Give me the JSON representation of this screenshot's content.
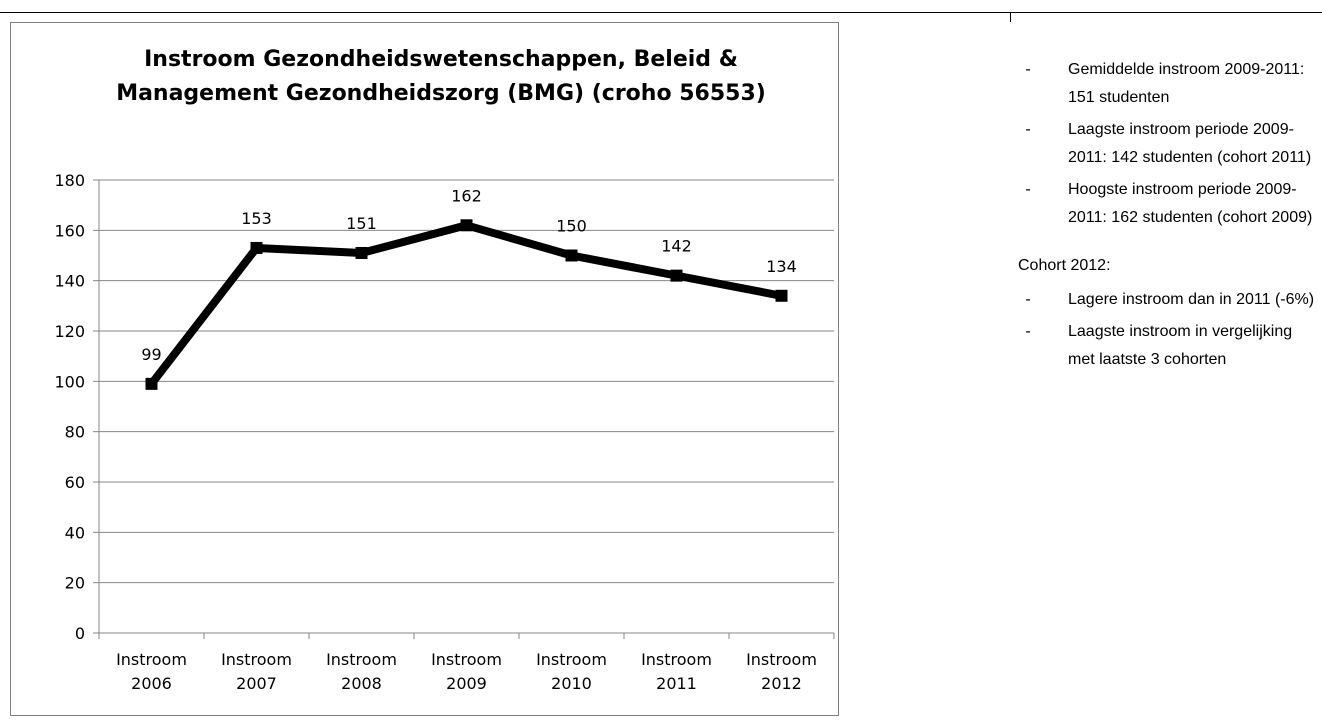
{
  "chart_data": {
    "type": "line",
    "title": "Instroom Gezondheidswetenschappen, Beleid & Management Gezondheidszorg (BMG) (croho 56553)",
    "categories": [
      [
        "Instroom",
        "2006"
      ],
      [
        "Instroom",
        "2007"
      ],
      [
        "Instroom",
        "2008"
      ],
      [
        "Instroom",
        "2009"
      ],
      [
        "Instroom",
        "2010"
      ],
      [
        "Instroom",
        "2011"
      ],
      [
        "Instroom",
        "2012"
      ]
    ],
    "series": [
      {
        "values": [
          99,
          153,
          151,
          162,
          150,
          142,
          134
        ],
        "color": "#000000"
      }
    ],
    "data_labels": [
      "99",
      "153",
      "151",
      "162",
      "150",
      "142",
      "134"
    ],
    "ylim": [
      0,
      180
    ],
    "yticks": [
      0,
      20,
      40,
      60,
      80,
      100,
      120,
      140,
      160,
      180
    ],
    "ytick_labels": [
      "0",
      "20",
      "40",
      "60",
      "80",
      "100",
      "120",
      "140",
      "160",
      "180"
    ],
    "grid": true,
    "legend": "none",
    "marker": "square",
    "xlabel": "",
    "ylabel": ""
  },
  "notes": {
    "bullets": [
      {
        "symbol": "-",
        "text": "Gemiddelde instroom 2009-2011: 151 studenten"
      },
      {
        "symbol": "-",
        "text": "Laagste instroom periode 2009-2011: 142 studenten (cohort 2011)"
      },
      {
        "symbol": "-",
        "text": "Hoogste instroom periode 2009-2011: 162 studenten (cohort 2009)"
      }
    ],
    "cohort_label": "Cohort 2012:",
    "cohort_bullets": [
      {
        "symbol": "-",
        "text": "Lagere instroom dan in 2011 (-6%)"
      },
      {
        "symbol": "-",
        "text": "Laagste instroom in vergelijking met laatste 3 cohorten"
      }
    ]
  }
}
